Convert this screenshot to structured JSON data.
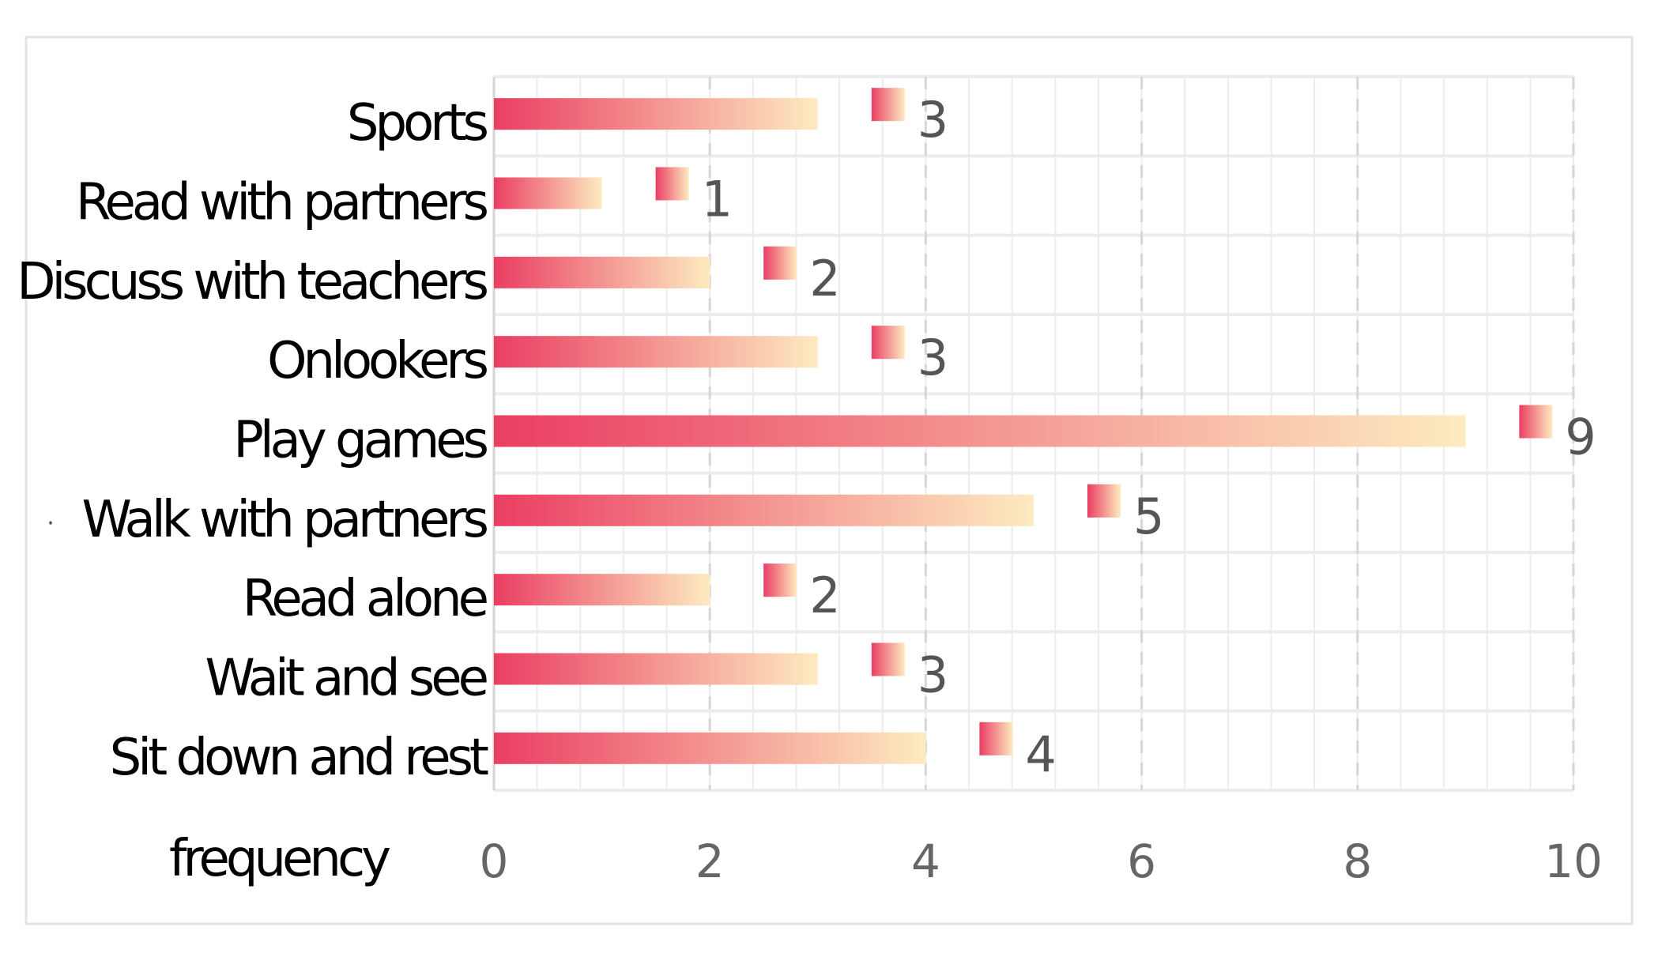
{
  "chart_data": {
    "type": "bar",
    "orientation": "horizontal",
    "categories": [
      "Sports",
      "Read with partners",
      "Discuss with teachers",
      "Onlookers",
      "Play games",
      "Walk with partners",
      "Read alone",
      "Wait and see",
      "Sit down and rest"
    ],
    "values": [
      3,
      1,
      2,
      3,
      9,
      5,
      2,
      3,
      4
    ],
    "value_labels": [
      "3",
      "1",
      "2",
      "3",
      "9",
      "5",
      "2",
      "3",
      "4"
    ],
    "xlabel": "frequency",
    "xlim": [
      0,
      10
    ],
    "xticks": [
      0,
      2,
      4,
      6,
      8,
      10
    ],
    "xtick_labels": [
      "0",
      "2",
      "4",
      "6",
      "8",
      "10"
    ],
    "grid": true,
    "colors": {
      "bar_start": "#ea3e62",
      "bar_end": "#fdebc0",
      "grid_minor": "#ececec",
      "grid_major": "#d6d6d6",
      "frame": "#e3e3e3"
    },
    "stray_mark": "·"
  }
}
